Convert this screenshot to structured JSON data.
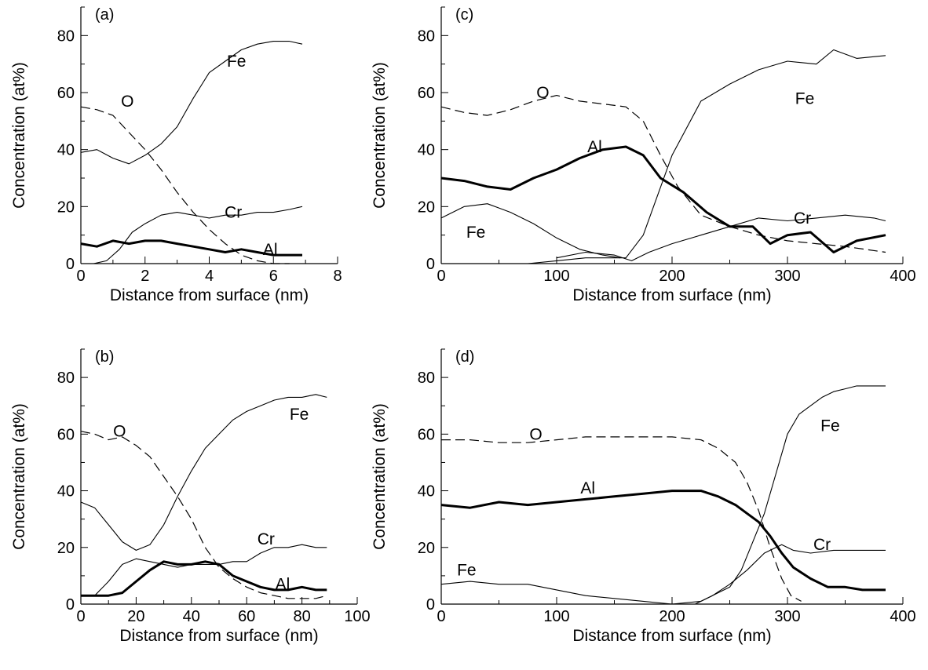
{
  "chart_data": [
    {
      "id": "a",
      "type": "line",
      "panel_label": "(a)",
      "xlabel": "Distance from surface (nm)",
      "ylabel": "Concentration (at%)",
      "xlim": [
        0,
        8
      ],
      "ylim": [
        0,
        90
      ],
      "xticks": [
        0,
        2,
        4,
        6,
        8
      ],
      "yticks": [
        0,
        20,
        40,
        60,
        80
      ],
      "series": [
        {
          "name": "Fe",
          "style": "thin",
          "x": [
            0,
            0.5,
            1.0,
            1.5,
            2.0,
            2.5,
            3.0,
            3.5,
            4.0,
            4.5,
            5.0,
            5.5,
            6.0,
            6.5,
            6.9
          ],
          "y": [
            39,
            40,
            37,
            35,
            38,
            42,
            48,
            58,
            67,
            71,
            75,
            77,
            78,
            78,
            77
          ]
        },
        {
          "name": "Fe",
          "style": "thin",
          "x": [
            0.4,
            0.8,
            1.2,
            1.6,
            2.0,
            2.5,
            3.0,
            3.5,
            4.0,
            4.5,
            5.0,
            5.5,
            6.0,
            6.5,
            6.9
          ],
          "y": [
            0,
            1,
            5,
            11,
            14,
            17,
            18,
            17,
            16,
            17,
            17,
            18,
            18,
            19,
            20
          ]
        },
        {
          "name": "O",
          "style": "dashed",
          "x": [
            0,
            0.5,
            1.0,
            1.5,
            2.0,
            2.5,
            3.0,
            3.5,
            4.0,
            4.5,
            5.0,
            5.5,
            6.0,
            6.5
          ],
          "y": [
            55,
            54,
            52,
            46,
            40,
            33,
            25,
            18,
            12,
            7,
            3,
            1,
            0,
            0
          ]
        },
        {
          "name": "Al",
          "style": "thick",
          "x": [
            0,
            0.5,
            1.0,
            1.5,
            2.0,
            2.5,
            3.0,
            3.5,
            4.0,
            4.5,
            5.0,
            5.5,
            6.0,
            6.5,
            6.9
          ],
          "y": [
            7,
            6,
            8,
            7,
            8,
            8,
            7,
            6,
            5,
            4,
            5,
            4,
            3,
            3,
            3
          ]
        }
      ],
      "annotations": [
        {
          "text": "Fe",
          "x": 4.85,
          "y": 71
        },
        {
          "text": "O",
          "x": 1.45,
          "y": 57
        },
        {
          "text": "Cr",
          "x": 4.75,
          "y": 18
        },
        {
          "text": "Al",
          "x": 5.9,
          "y": 5
        }
      ]
    },
    {
      "id": "c",
      "type": "line",
      "panel_label": "(c)",
      "xlabel": "Distance from surface (nm)",
      "ylabel": "Concentration (at%)",
      "xlim": [
        0,
        400
      ],
      "ylim": [
        0,
        90
      ],
      "xticks": [
        0,
        100,
        200,
        300,
        400
      ],
      "yticks": [
        0,
        20,
        40,
        60,
        80
      ],
      "series": [
        {
          "name": "Fe",
          "style": "thin",
          "x": [
            0,
            25,
            50,
            75,
            100,
            125,
            150,
            160,
            175,
            200,
            225,
            250,
            275,
            300,
            325,
            340,
            360,
            385
          ],
          "y": [
            0,
            0,
            0,
            0,
            1,
            2,
            2,
            2,
            10,
            38,
            57,
            63,
            68,
            71,
            70,
            75,
            72,
            73
          ]
        },
        {
          "name": "Fe",
          "style": "thin",
          "x": [
            0,
            20,
            40,
            60,
            80,
            100,
            120,
            140,
            155
          ],
          "y": [
            16,
            20,
            21,
            18,
            14,
            9,
            5,
            3,
            2
          ]
        },
        {
          "name": "Cr",
          "style": "thin",
          "x": [
            100,
            125,
            150,
            165,
            180,
            200,
            225,
            250,
            275,
            300,
            325,
            350,
            375,
            385
          ],
          "y": [
            2,
            4,
            3,
            1,
            4,
            7,
            10,
            13,
            16,
            15,
            16,
            17,
            16,
            15
          ]
        },
        {
          "name": "O",
          "style": "dashed",
          "x": [
            0,
            20,
            40,
            60,
            80,
            100,
            120,
            140,
            160,
            175,
            190,
            205,
            225,
            250,
            275,
            300,
            325,
            350,
            385
          ],
          "y": [
            55,
            53,
            52,
            54,
            57,
            59,
            57,
            56,
            55,
            50,
            38,
            27,
            17,
            13,
            10,
            8,
            7,
            6,
            4
          ]
        },
        {
          "name": "Al",
          "style": "thick",
          "x": [
            0,
            20,
            40,
            60,
            80,
            100,
            120,
            140,
            160,
            175,
            190,
            210,
            230,
            250,
            270,
            285,
            300,
            320,
            340,
            360,
            385
          ],
          "y": [
            30,
            29,
            27,
            26,
            30,
            33,
            37,
            40,
            41,
            38,
            30,
            25,
            18,
            13,
            13,
            7,
            10,
            11,
            4,
            8,
            10
          ]
        }
      ],
      "annotations": [
        {
          "text": "O",
          "x": 88,
          "y": 60
        },
        {
          "text": "Fe",
          "x": 315,
          "y": 58
        },
        {
          "text": "Al",
          "x": 133,
          "y": 41
        },
        {
          "text": "Fe",
          "x": 30,
          "y": 11
        },
        {
          "text": "Cr",
          "x": 313,
          "y": 16
        }
      ]
    },
    {
      "id": "b",
      "type": "line",
      "panel_label": "(b)",
      "xlabel": "Distance from surface (nm)",
      "ylabel": "Concentration (at%)",
      "xlim": [
        0,
        100
      ],
      "ylim": [
        0,
        90
      ],
      "xticks": [
        0,
        20,
        40,
        60,
        80,
        100
      ],
      "yticks": [
        0,
        20,
        40,
        60,
        80
      ],
      "series": [
        {
          "name": "Fe",
          "style": "thin",
          "x": [
            0,
            5,
            10,
            15,
            20,
            25,
            30,
            35,
            40,
            45,
            50,
            55,
            60,
            65,
            70,
            75,
            80,
            85,
            89
          ],
          "y": [
            36,
            34,
            28,
            22,
            19,
            21,
            28,
            38,
            47,
            55,
            60,
            65,
            68,
            70,
            72,
            73,
            73,
            74,
            73
          ]
        },
        {
          "name": "Cr",
          "style": "thin",
          "x": [
            5,
            10,
            15,
            20,
            25,
            30,
            35,
            40,
            45,
            50,
            55,
            60,
            65,
            70,
            75,
            80,
            85,
            89
          ],
          "y": [
            3,
            8,
            14,
            16,
            15,
            14,
            13,
            14,
            14,
            14,
            15,
            15,
            18,
            20,
            20,
            21,
            20,
            20
          ]
        },
        {
          "name": "O",
          "style": "dashed",
          "x": [
            0,
            5,
            10,
            15,
            20,
            25,
            30,
            35,
            40,
            45,
            50,
            55,
            60,
            65,
            70,
            75,
            80,
            85,
            89
          ],
          "y": [
            61,
            60,
            58,
            59,
            56,
            52,
            45,
            38,
            30,
            20,
            13,
            9,
            6,
            4,
            3,
            2,
            2,
            2,
            3
          ]
        },
        {
          "name": "Al",
          "style": "thick",
          "x": [
            0,
            5,
            10,
            15,
            20,
            25,
            30,
            35,
            40,
            45,
            50,
            55,
            60,
            65,
            70,
            75,
            80,
            85,
            89
          ],
          "y": [
            3,
            3,
            3,
            4,
            8,
            12,
            15,
            14,
            14,
            15,
            14,
            10,
            8,
            6,
            5,
            5,
            6,
            5,
            5
          ]
        }
      ],
      "annotations": [
        {
          "text": "O",
          "x": 14,
          "y": 61
        },
        {
          "text": "Fe",
          "x": 79,
          "y": 67
        },
        {
          "text": "Cr",
          "x": 67,
          "y": 23
        },
        {
          "text": "Al",
          "x": 73,
          "y": 7
        }
      ]
    },
    {
      "id": "d",
      "type": "line",
      "panel_label": "(d)",
      "xlabel": "Distance from surface (nm)",
      "ylabel": "Concentration (at%)",
      "xlim": [
        0,
        400
      ],
      "ylim": [
        0,
        90
      ],
      "xticks": [
        0,
        100,
        200,
        300,
        400
      ],
      "yticks": [
        0,
        20,
        40,
        60,
        80
      ],
      "series": [
        {
          "name": "Fe",
          "style": "thin",
          "x": [
            150,
            175,
            200,
            225,
            250,
            260,
            270,
            280,
            290,
            300,
            310,
            320,
            330,
            340,
            350,
            360,
            370,
            385
          ],
          "y": [
            0,
            0,
            0,
            1,
            6,
            12,
            22,
            32,
            46,
            60,
            67,
            70,
            73,
            75,
            76,
            77,
            77,
            77
          ]
        },
        {
          "name": "Fe",
          "style": "thin",
          "x": [
            0,
            25,
            50,
            75,
            100,
            125,
            150,
            175,
            200,
            210
          ],
          "y": [
            7,
            8,
            7,
            7,
            5,
            3,
            2,
            1,
            0,
            0
          ]
        },
        {
          "name": "Cr",
          "style": "thin",
          "x": [
            220,
            235,
            250,
            265,
            280,
            295,
            305,
            320,
            340,
            360,
            385
          ],
          "y": [
            0,
            3,
            7,
            12,
            18,
            21,
            19,
            18,
            19,
            19,
            19
          ]
        },
        {
          "name": "O",
          "style": "dashed",
          "x": [
            0,
            25,
            50,
            75,
            100,
            125,
            150,
            175,
            200,
            225,
            240,
            255,
            265,
            275,
            285,
            295,
            303,
            312
          ],
          "y": [
            58,
            58,
            57,
            57,
            58,
            59,
            59,
            59,
            59,
            58,
            55,
            50,
            43,
            33,
            20,
            9,
            3,
            1
          ]
        },
        {
          "name": "Al",
          "style": "thick",
          "x": [
            0,
            25,
            50,
            75,
            100,
            125,
            150,
            175,
            200,
            225,
            240,
            255,
            265,
            275,
            285,
            295,
            305,
            320,
            335,
            350,
            365,
            385
          ],
          "y": [
            35,
            34,
            36,
            35,
            36,
            37,
            38,
            39,
            40,
            40,
            38,
            35,
            32,
            29,
            24,
            18,
            13,
            9,
            6,
            6,
            5,
            5
          ]
        }
      ],
      "annotations": [
        {
          "text": "O",
          "x": 82,
          "y": 60
        },
        {
          "text": "Fe",
          "x": 337,
          "y": 63
        },
        {
          "text": "Al",
          "x": 127,
          "y": 41
        },
        {
          "text": "Fe",
          "x": 22,
          "y": 12
        },
        {
          "text": "Cr",
          "x": 330,
          "y": 21
        }
      ]
    }
  ]
}
